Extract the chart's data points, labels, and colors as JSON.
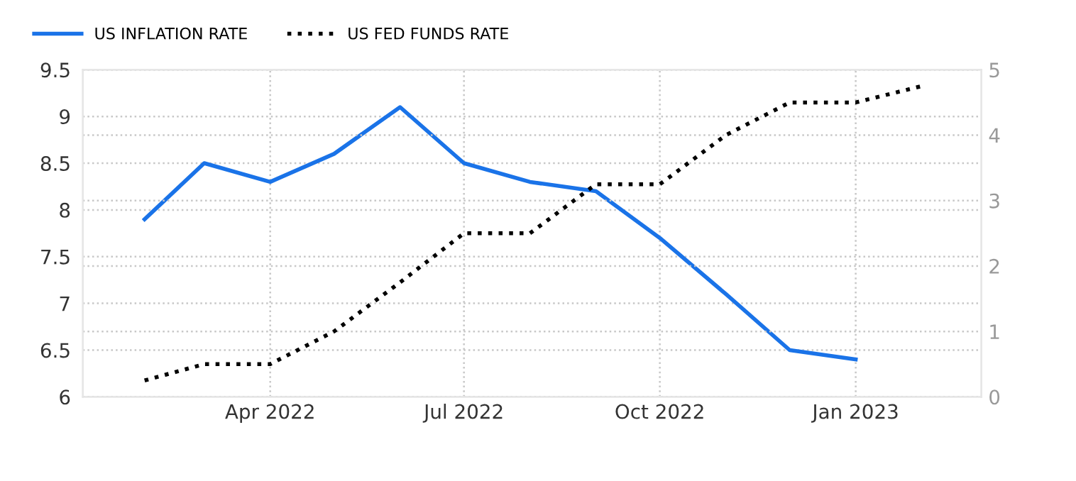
{
  "chart_data": {
    "type": "line",
    "x": [
      "2022-02",
      "2022-03",
      "2022-04",
      "2022-05",
      "2022-06",
      "2022-07",
      "2022-08",
      "2022-09",
      "2022-10",
      "2022-11",
      "2022-12",
      "2023-01",
      "2023-02"
    ],
    "series": [
      {
        "name": "US INFLATION RATE",
        "color": "#1a73e8",
        "line_style": "solid",
        "values": [
          7.9,
          8.5,
          8.3,
          8.6,
          9.1,
          8.5,
          8.3,
          8.2,
          7.7,
          7.1,
          6.5,
          6.4,
          null
        ]
      },
      {
        "name": "US FED FUNDS RATE",
        "color": "#000000",
        "line_style": "dotted",
        "axis": "y2",
        "values": [
          0.25,
          0.5,
          0.5,
          1.0,
          1.75,
          2.5,
          2.5,
          3.25,
          3.25,
          4.0,
          4.5,
          4.5,
          4.75
        ]
      }
    ],
    "xlim": [
      "2022-01-03",
      "2023-03-01"
    ],
    "xticks": [
      {
        "value": "2022-04-01",
        "label": "Apr 2022"
      },
      {
        "value": "2022-07-01",
        "label": "Jul 2022"
      },
      {
        "value": "2022-10-01",
        "label": "Oct 2022"
      },
      {
        "value": "2023-01-01",
        "label": "Jan 2023"
      }
    ],
    "ylim": [
      6,
      9.5
    ],
    "yticks": [
      6,
      6.5,
      7,
      7.5,
      8,
      8.5,
      9,
      9.5
    ],
    "y2lim": [
      0,
      5
    ],
    "y2ticks": [
      0,
      1,
      2,
      3,
      4,
      5
    ],
    "grid": true,
    "legend": "top left",
    "marker": "none"
  }
}
